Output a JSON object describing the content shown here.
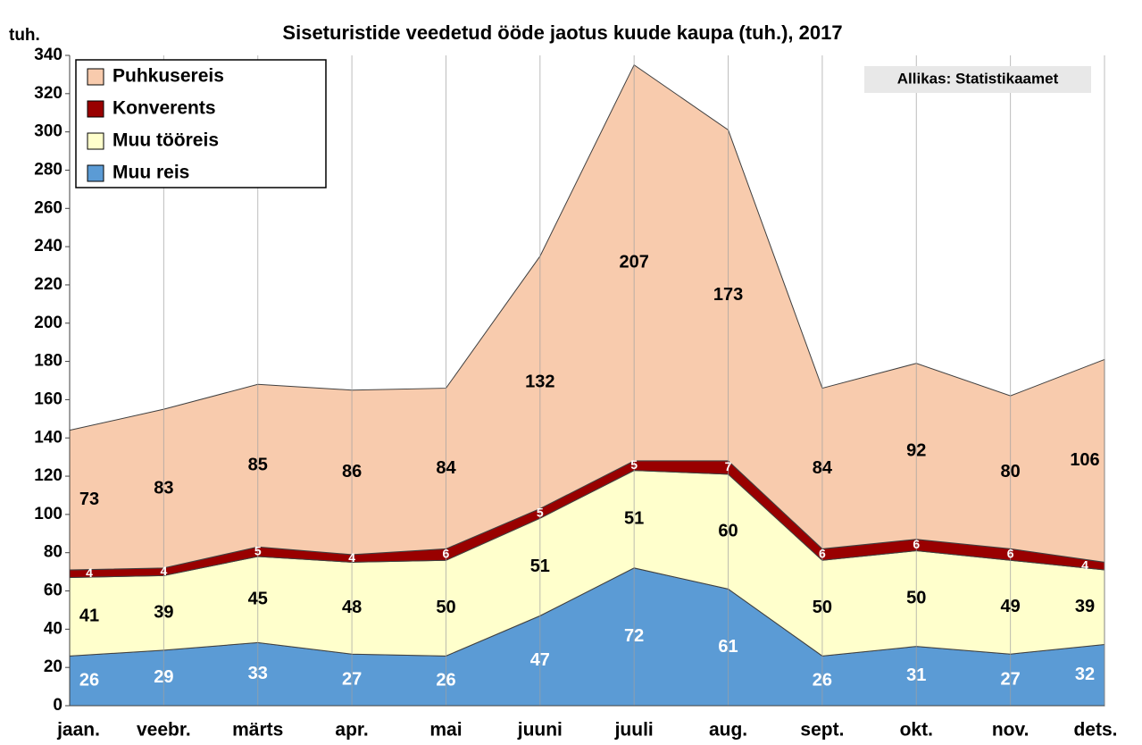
{
  "chart_data": {
    "type": "stacked_area",
    "title": "Siseturistide veedetud ööde jaotus kuude kaupa (tuh.), 2017",
    "y_label": "tuh.",
    "annotation": "Allikas: Statistikaamet",
    "categories": [
      "jaan.",
      "veebr.",
      "märts",
      "apr.",
      "mai",
      "juuni",
      "juuli",
      "aug.",
      "sept.",
      "okt.",
      "nov.",
      "dets."
    ],
    "series": [
      {
        "name": "Muu reis",
        "color": "#5b9bd5",
        "label_color": "#ffffff",
        "values": [
          26,
          29,
          33,
          27,
          26,
          47,
          72,
          61,
          26,
          31,
          27,
          32
        ]
      },
      {
        "name": "Muu tööreis",
        "color": "#ffffcc",
        "label_color": "#000000",
        "values": [
          41,
          39,
          45,
          48,
          50,
          51,
          51,
          60,
          50,
          50,
          49,
          39
        ]
      },
      {
        "name": "Konverents",
        "color": "#990000",
        "label_color": "#ffffff",
        "values": [
          4,
          4,
          5,
          4,
          6,
          5,
          5,
          7,
          6,
          6,
          6,
          4
        ]
      },
      {
        "name": "Puhkusereis",
        "color": "#f8cbad",
        "label_color": "#000000",
        "values": [
          73,
          83,
          85,
          86,
          84,
          132,
          207,
          173,
          84,
          92,
          80,
          106
        ]
      }
    ],
    "ylim": [
      0,
      340
    ],
    "yticks": [
      0,
      20,
      40,
      60,
      80,
      100,
      120,
      140,
      160,
      180,
      200,
      220,
      240,
      260,
      280,
      300,
      320,
      340
    ],
    "grid": "x",
    "legend": "top-left"
  }
}
